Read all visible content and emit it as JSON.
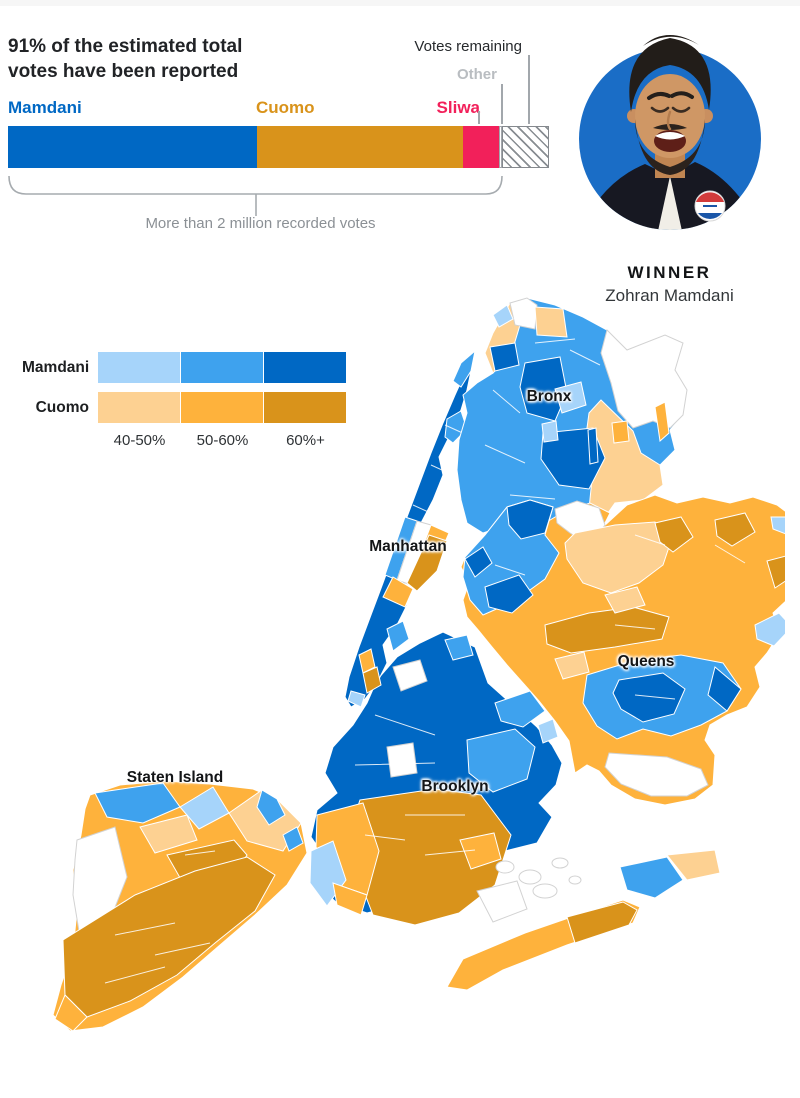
{
  "palette": {
    "blue_dark": "#0068c4",
    "blue_mid": "#3ea2ee",
    "blue_light": "#a6d4fa",
    "gold_dark": "#d9931b",
    "gold_mid": "#feb23c",
    "gold_light": "#fdd192",
    "red": "#f2205a",
    "gray_text": "#8b9095",
    "gray_line": "#a2a7ac",
    "map_nodata_stroke": "#d2d2d2"
  },
  "header": {
    "headline": "91% of the estimated total votes have been reported"
  },
  "results_bar": {
    "labels": {
      "mamdani": "Mamdani",
      "cuomo": "Cuomo",
      "sliwa": "Sliwa",
      "other": "Other",
      "votes_remaining": "Votes remaining"
    },
    "segments": [
      {
        "key": "mamdani",
        "label": "Mamdani",
        "percent": 46.0
      },
      {
        "key": "cuomo",
        "label": "Cuomo",
        "percent": 38.1
      },
      {
        "key": "sliwa",
        "label": "Sliwa",
        "percent": 6.6
      },
      {
        "key": "other",
        "label": "Other",
        "percent": 0.6
      },
      {
        "key": "remaining",
        "label": "Votes remaining",
        "percent": 8.7
      }
    ],
    "caption": "More than 2 million recorded votes"
  },
  "winner": {
    "tag": "WINNER",
    "name": "Zohran Mamdani"
  },
  "legend": {
    "rows": [
      {
        "label": "Mamdani"
      },
      {
        "label": "Cuomo"
      }
    ],
    "ticks": [
      "40-50%",
      "50-60%",
      "60%+"
    ]
  },
  "map": {
    "labels": [
      "Bronx",
      "Manhattan",
      "Queens",
      "Brooklyn",
      "Staten Island"
    ]
  },
  "chart_data": {
    "type": "bar",
    "stacked": true,
    "title": "91% of the estimated total votes have been reported",
    "unit": "share of estimated total votes (%)",
    "reported_pct": 91,
    "segments": [
      {
        "name": "Mamdani",
        "value": 46.0,
        "color": "#0068c4"
      },
      {
        "name": "Cuomo",
        "value": 38.1,
        "color": "#d9931b"
      },
      {
        "name": "Sliwa",
        "value": 6.6,
        "color": "#f2205a"
      },
      {
        "name": "Other",
        "value": 0.6,
        "color": "#ffffff"
      },
      {
        "name": "Votes remaining",
        "value": 8.7,
        "color": "hatch"
      }
    ],
    "note": "More than 2 million recorded votes",
    "winner": "Zohran Mamdani",
    "choropleth_legend": {
      "candidates": [
        "Mamdani",
        "Cuomo"
      ],
      "bins": [
        "40-50%",
        "50-60%",
        "60%+"
      ],
      "mamdani_colors": [
        "#a6d4fa",
        "#3ea2ee",
        "#0068c4"
      ],
      "cuomo_colors": [
        "#fdd192",
        "#feb23c",
        "#d9931b"
      ],
      "regions": [
        "Bronx",
        "Manhattan",
        "Queens",
        "Brooklyn",
        "Staten Island"
      ]
    }
  }
}
